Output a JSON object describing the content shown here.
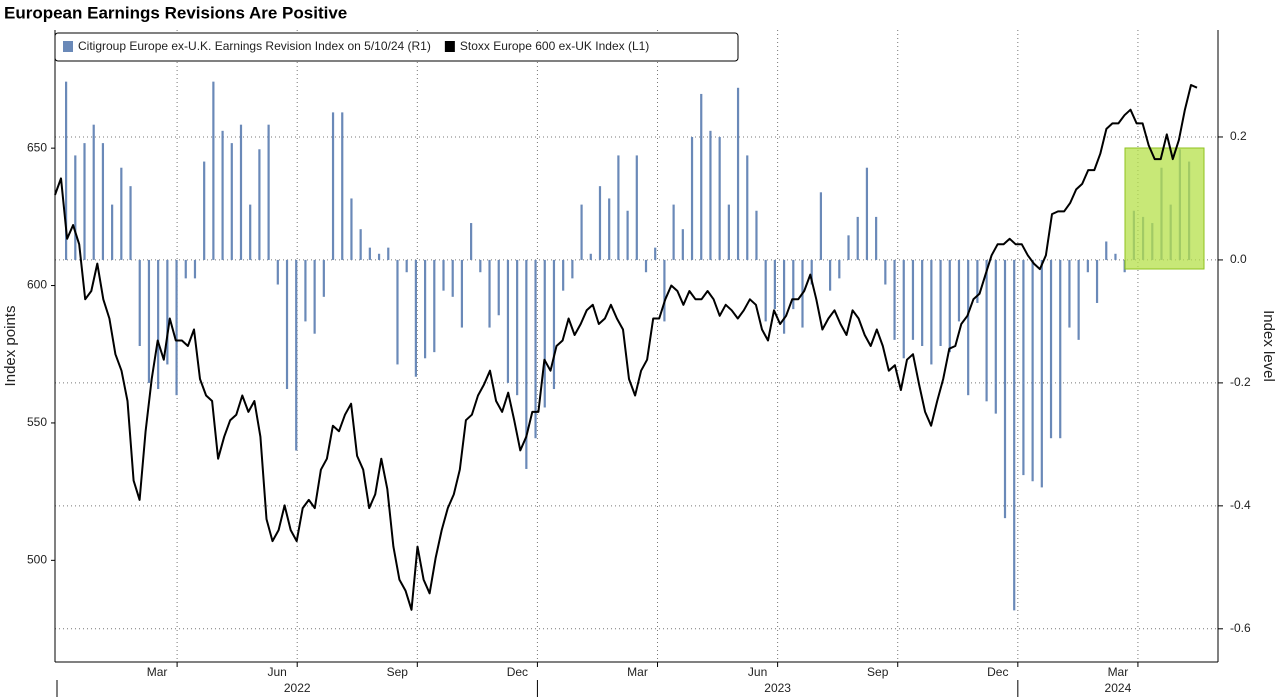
{
  "chart_data": {
    "type": "bar-line",
    "title": "European Earnings Revisions Are Positive",
    "ylabel": "Index points",
    "y2label": "Index level",
    "xlim": [
      "2022-01",
      "2024-06"
    ],
    "xticks": [
      {
        "value": "2022-03",
        "label": "Mar"
      },
      {
        "value": "2022-06",
        "label": "Jun"
      },
      {
        "value": "2022-09",
        "label": "Sep"
      },
      {
        "value": "2022-12",
        "label": "Dec"
      },
      {
        "value": "2023-03",
        "label": "Mar"
      },
      {
        "value": "2023-06",
        "label": "Jun"
      },
      {
        "value": "2023-09",
        "label": "Sep"
      },
      {
        "value": "2023-12",
        "label": "Dec"
      },
      {
        "value": "2024-03",
        "label": "Mar"
      }
    ],
    "years": [
      "2022",
      "2023",
      "2024"
    ],
    "ylim": [
      463,
      693
    ],
    "yticks": [
      500,
      550,
      600,
      650
    ],
    "y2lim": [
      -0.654,
      0.374
    ],
    "y2ticks": [
      -0.6,
      -0.4,
      -0.2,
      {
        "value": 0,
        "label": "0.0"
      },
      0.2
    ],
    "grid": true,
    "legend": "top-left",
    "series": [
      {
        "name": "Citigroup Europe ex-U.K. Earnings Revision Index on 5/10/24 (R1)",
        "color": "#6a89b8",
        "axis": "y2",
        "kind": "bar",
        "values": [
          0.29,
          0.17,
          0.19,
          0.22,
          0.19,
          0.09,
          0.15,
          0.12,
          -0.14,
          -0.2,
          -0.21,
          -0.17,
          -0.22,
          -0.03,
          -0.03,
          0.16,
          0.29,
          0.21,
          0.19,
          0.22,
          0.09,
          0.18,
          0.22,
          -0.04,
          -0.21,
          -0.31,
          -0.1,
          -0.12,
          -0.06,
          0.24,
          0.24,
          0.1,
          0.05,
          0.02,
          0.01,
          0.02,
          -0.17,
          -0.02,
          -0.19,
          -0.16,
          -0.15,
          -0.05,
          -0.06,
          -0.11,
          0.06,
          -0.02,
          -0.11,
          -0.09,
          -0.2,
          -0.22,
          -0.34,
          -0.29,
          -0.24,
          -0.21,
          -0.05,
          -0.03,
          0.09,
          0.01,
          0.12,
          0.1,
          0.17,
          0.08,
          0.17,
          -0.02,
          0.02,
          -0.1,
          0.09,
          0.05,
          0.2,
          0.27,
          0.21,
          0.2,
          0.09,
          0.28,
          0.17,
          0.08,
          -0.1,
          -0.08,
          -0.12,
          -0.08,
          -0.11,
          -0.04,
          0.11,
          -0.05,
          -0.03,
          0.04,
          0.07,
          0.15,
          0.07,
          -0.04,
          -0.13,
          -0.16,
          -0.13,
          -0.14,
          -0.17,
          -0.14,
          -0.15,
          -0.1,
          -0.22,
          -0.07,
          -0.23,
          -0.25,
          -0.42,
          -0.57,
          -0.35,
          -0.36,
          -0.37,
          -0.29,
          -0.29,
          -0.11,
          -0.13,
          -0.02,
          -0.07,
          0.03,
          0.01,
          -0.02,
          0.08,
          0.07,
          0.06,
          0.15,
          0.09,
          0.18,
          0.16
        ]
      },
      {
        "name": "Stoxx Europe 600 ex-UK Index (L1)",
        "color": "#000000",
        "axis": "y",
        "kind": "line",
        "values": [
          633,
          639,
          617,
          622,
          615,
          595,
          598,
          608,
          595,
          588,
          575,
          569,
          558,
          529,
          522,
          547,
          566,
          580,
          573,
          588,
          580,
          580,
          578,
          584,
          566,
          560,
          558,
          537,
          545,
          551,
          553,
          560,
          554,
          558,
          545,
          515,
          507,
          511,
          520,
          511,
          507,
          519,
          522,
          519,
          533,
          537,
          549,
          547,
          553,
          557,
          538,
          533,
          519,
          524,
          537,
          526,
          505,
          493,
          489,
          482,
          505,
          493,
          488,
          501,
          511,
          519,
          524,
          533,
          551,
          553,
          560,
          564,
          569,
          558,
          554,
          561,
          551,
          540,
          545,
          554,
          554,
          573,
          569,
          578,
          580,
          588,
          582,
          586,
          591,
          593,
          586,
          588,
          593,
          588,
          584,
          566,
          560,
          569,
          573,
          588,
          588,
          595,
          600,
          598,
          593,
          598,
          595,
          595,
          598,
          595,
          589,
          593,
          591,
          588,
          591,
          595,
          593,
          584,
          580,
          591,
          586,
          589,
          595,
          595,
          598,
          604,
          595,
          584,
          588,
          591,
          586,
          582,
          591,
          588,
          582,
          578,
          584,
          578,
          569,
          571,
          562,
          573,
          575,
          564,
          554,
          549,
          558,
          566,
          577,
          578,
          586,
          589,
          595,
          597,
          604,
          611,
          615,
          615,
          617,
          615,
          615,
          611,
          608,
          606,
          611,
          626,
          627,
          627,
          630,
          635,
          637,
          642,
          642,
          648,
          657,
          659,
          659,
          662,
          664,
          659,
          659,
          651,
          646,
          646,
          655,
          646,
          653,
          664,
          673,
          672
        ]
      }
    ]
  }
}
